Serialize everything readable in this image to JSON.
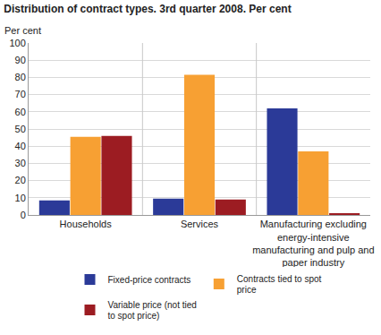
{
  "chart_data": {
    "type": "bar",
    "title": "Distribution of contract types. 3rd quarter 2008. Per cent",
    "y_label": "Per cent",
    "categories": [
      "Households",
      "Services",
      "Manufacturing excluding energy-intensive manufacturing and pulp and paper industry"
    ],
    "series": [
      {
        "name": "Fixed-price contracts",
        "color": "#2b3a98",
        "values": [
          8.5,
          9.5,
          62
        ]
      },
      {
        "name": "Contracts tied to spot price",
        "color": "#f7a033",
        "values": [
          45.5,
          81.5,
          37
        ]
      },
      {
        "name": "Variable price (not tied to spot price)",
        "color": "#9c1c22",
        "values": [
          46,
          9,
          1
        ]
      }
    ],
    "ylim": [
      0,
      100
    ],
    "yticks": [
      0,
      10,
      20,
      30,
      40,
      50,
      60,
      70,
      80,
      90,
      100
    ],
    "grid": true,
    "legend": "bottom"
  }
}
